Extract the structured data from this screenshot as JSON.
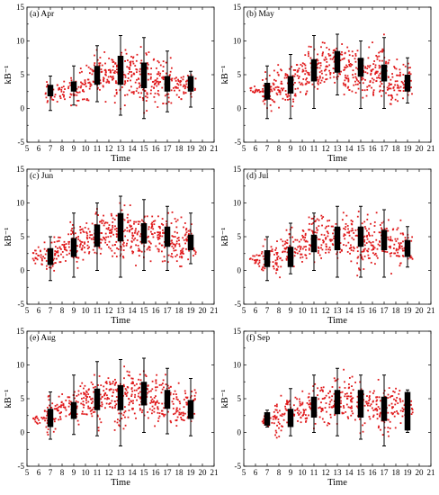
{
  "chart_data": [
    {
      "type": "box",
      "title": "(a) Apr",
      "xlabel": "Time",
      "ylabel": "kB⁻¹",
      "xlim": [
        5,
        21
      ],
      "ylim": [
        -5,
        15
      ],
      "xticks": [
        5,
        6,
        7,
        8,
        9,
        10,
        11,
        12,
        13,
        14,
        15,
        16,
        17,
        18,
        19,
        20,
        21
      ],
      "yticks": [
        -5,
        0,
        5,
        10,
        15
      ],
      "scatter_hours": [
        7,
        8,
        9,
        10,
        11,
        12,
        13,
        14,
        15,
        16,
        17,
        18,
        19
      ],
      "scatter_range": {
        "7": [
          -0.5,
          4.8
        ],
        "8": [
          0.5,
          4.5
        ],
        "9": [
          -0.5,
          5.5
        ],
        "10": [
          0,
          7.5
        ],
        "11": [
          1,
          9.5
        ],
        "12": [
          0,
          10
        ],
        "13": [
          -1,
          10.8
        ],
        "14": [
          0,
          10.5
        ],
        "15": [
          -1.5,
          10.5
        ],
        "16": [
          -1,
          9
        ],
        "17": [
          -0.5,
          8.5
        ],
        "18": [
          0.5,
          6.5
        ],
        "19": [
          0.5,
          5.5
        ]
      },
      "boxes": [
        {
          "hour": 7,
          "whisker_low": -0.3,
          "q1": 1.8,
          "q3": 3.5,
          "whisker_high": 4.8
        },
        {
          "hour": 9,
          "whisker_low": 0.5,
          "q1": 2.5,
          "q3": 4.0,
          "whisker_high": 6.3
        },
        {
          "hour": 11,
          "whisker_low": 1.0,
          "q1": 3.5,
          "q3": 6.3,
          "whisker_high": 9.3
        },
        {
          "hour": 13,
          "whisker_low": -1.0,
          "q1": 3.5,
          "q3": 7.8,
          "whisker_high": 10.8
        },
        {
          "hour": 15,
          "whisker_low": -1.5,
          "q1": 3.0,
          "q3": 6.8,
          "whisker_high": 10.5
        },
        {
          "hour": 17,
          "whisker_low": -0.5,
          "q1": 2.5,
          "q3": 4.8,
          "whisker_high": 8.5
        },
        {
          "hour": 19,
          "whisker_low": 0.2,
          "q1": 2.5,
          "q3": 4.8,
          "whisker_high": 5.5
        }
      ]
    },
    {
      "type": "box",
      "title": "(b) May",
      "xlabel": "Time",
      "ylabel": "kB⁻¹",
      "xlim": [
        5,
        21
      ],
      "ylim": [
        -5,
        15
      ],
      "xticks": [
        5,
        6,
        7,
        8,
        9,
        10,
        11,
        12,
        13,
        14,
        15,
        16,
        17,
        18,
        19,
        20,
        21
      ],
      "yticks": [
        -5,
        0,
        5,
        10,
        15
      ],
      "scatter_hours": [
        6,
        7,
        8,
        9,
        10,
        11,
        12,
        13,
        14,
        15,
        16,
        17,
        18,
        19
      ],
      "scatter_range": {
        "6": [
          2,
          3.5
        ],
        "7": [
          -1.5,
          6.5
        ],
        "8": [
          -1,
          7
        ],
        "9": [
          -1.5,
          8
        ],
        "10": [
          0,
          9
        ],
        "11": [
          0,
          10.5
        ],
        "12": [
          1,
          11.5
        ],
        "13": [
          2,
          11
        ],
        "14": [
          0,
          11
        ],
        "15": [
          0,
          10
        ],
        "16": [
          -0.5,
          10.5
        ],
        "17": [
          -1.5,
          12
        ],
        "18": [
          -1,
          8.5
        ],
        "19": [
          0.5,
          7.5
        ]
      },
      "boxes": [
        {
          "hour": 7,
          "whisker_low": -1.5,
          "q1": 1.3,
          "q3": 3.8,
          "whisker_high": 6.3
        },
        {
          "hour": 9,
          "whisker_low": -1.5,
          "q1": 2.2,
          "q3": 4.8,
          "whisker_high": 8.0
        },
        {
          "hour": 11,
          "whisker_low": 0,
          "q1": 4.0,
          "q3": 7.3,
          "whisker_high": 10.8
        },
        {
          "hour": 13,
          "whisker_low": 2.0,
          "q1": 5.3,
          "q3": 8.5,
          "whisker_high": 11.0
        },
        {
          "hour": 15,
          "whisker_low": 0,
          "q1": 4.7,
          "q3": 7.5,
          "whisker_high": 10.0
        },
        {
          "hour": 17,
          "whisker_low": 0,
          "q1": 4.0,
          "q3": 6.5,
          "whisker_high": 10.5
        },
        {
          "hour": 19,
          "whisker_low": 0.8,
          "q1": 2.5,
          "q3": 5.0,
          "whisker_high": 7.5
        }
      ]
    },
    {
      "type": "box",
      "title": "(c) Jun",
      "xlabel": "Time",
      "ylabel": "kB⁻¹",
      "xlim": [
        5,
        21
      ],
      "ylim": [
        -5,
        15
      ],
      "xticks": [
        5,
        6,
        7,
        8,
        9,
        10,
        11,
        12,
        13,
        14,
        15,
        16,
        17,
        18,
        19,
        20,
        21
      ],
      "yticks": [
        -5,
        0,
        5,
        10,
        15
      ],
      "scatter_hours": [
        6,
        7,
        8,
        9,
        10,
        11,
        12,
        13,
        14,
        15,
        16,
        17,
        18,
        19
      ],
      "scatter_range": {
        "6": [
          0,
          4.5
        ],
        "7": [
          -1.5,
          6.5
        ],
        "8": [
          -0.5,
          7
        ],
        "9": [
          -1,
          8.5
        ],
        "10": [
          0,
          9
        ],
        "11": [
          0,
          10.5
        ],
        "12": [
          1,
          11
        ],
        "13": [
          -1,
          11.2
        ],
        "14": [
          0,
          11
        ],
        "15": [
          0,
          10.5
        ],
        "16": [
          0,
          10.5
        ],
        "17": [
          0,
          9.5
        ],
        "18": [
          -1.5,
          9
        ],
        "19": [
          0.5,
          8.5
        ]
      },
      "boxes": [
        {
          "hour": 7,
          "whisker_low": -1.5,
          "q1": 0.8,
          "q3": 3.3,
          "whisker_high": 5.0
        },
        {
          "hour": 9,
          "whisker_low": -1.0,
          "q1": 2.0,
          "q3": 4.8,
          "whisker_high": 8.5
        },
        {
          "hour": 11,
          "whisker_low": 0,
          "q1": 3.5,
          "q3": 6.8,
          "whisker_high": 10.0
        },
        {
          "hour": 13,
          "whisker_low": -1.0,
          "q1": 4.3,
          "q3": 8.5,
          "whisker_high": 11.0
        },
        {
          "hour": 15,
          "whisker_low": 0,
          "q1": 4.0,
          "q3": 7.0,
          "whisker_high": 10.5
        },
        {
          "hour": 17,
          "whisker_low": 0,
          "q1": 3.5,
          "q3": 6.5,
          "whisker_high": 9.5
        },
        {
          "hour": 19,
          "whisker_low": 1.0,
          "q1": 3.0,
          "q3": 5.3,
          "whisker_high": 8.5
        }
      ]
    },
    {
      "type": "box",
      "title": "(d) Jul",
      "xlabel": "Time",
      "ylabel": "kB⁻¹",
      "xlim": [
        5,
        21
      ],
      "ylim": [
        -5,
        15
      ],
      "xticks": [
        5,
        6,
        7,
        8,
        9,
        10,
        11,
        12,
        13,
        14,
        15,
        16,
        17,
        18,
        19,
        20,
        21
      ],
      "yticks": [
        -5,
        0,
        5,
        10,
        15
      ],
      "scatter_hours": [
        6,
        7,
        8,
        9,
        10,
        11,
        12,
        13,
        14,
        15,
        16,
        17,
        18,
        19
      ],
      "scatter_range": {
        "6": [
          0,
          3
        ],
        "7": [
          -1.5,
          5.5
        ],
        "8": [
          -1.5,
          6
        ],
        "9": [
          -0.5,
          7.5
        ],
        "10": [
          0,
          8
        ],
        "11": [
          0,
          10.5
        ],
        "12": [
          0.5,
          9.5
        ],
        "13": [
          -1,
          9.5
        ],
        "14": [
          0,
          9.5
        ],
        "15": [
          -2,
          9.5
        ],
        "16": [
          -1,
          9.5
        ],
        "17": [
          0,
          9.5
        ],
        "18": [
          -1.5,
          8.5
        ],
        "19": [
          0.5,
          6.5
        ]
      },
      "boxes": [
        {
          "hour": 7,
          "whisker_low": -1.5,
          "q1": 0.5,
          "q3": 3.0,
          "whisker_high": 5.0
        },
        {
          "hour": 9,
          "whisker_low": -0.5,
          "q1": 0.5,
          "q3": 3.5,
          "whisker_high": 7.0
        },
        {
          "hour": 11,
          "whisker_low": 0,
          "q1": 2.7,
          "q3": 5.3,
          "whisker_high": 8.5
        },
        {
          "hour": 13,
          "whisker_low": -1.0,
          "q1": 3.0,
          "q3": 6.5,
          "whisker_high": 9.5
        },
        {
          "hour": 15,
          "whisker_low": -1.0,
          "q1": 3.5,
          "q3": 6.5,
          "whisker_high": 9.5
        },
        {
          "hour": 17,
          "whisker_low": -1.0,
          "q1": 3.0,
          "q3": 6.0,
          "whisker_high": 9.0
        },
        {
          "hour": 19,
          "whisker_low": 0.5,
          "q1": 2.0,
          "q3": 4.5,
          "whisker_high": 6.5
        }
      ]
    },
    {
      "type": "box",
      "title": "(e) Aug",
      "xlabel": "Time",
      "ylabel": "kB⁻¹",
      "xlim": [
        5,
        21
      ],
      "ylim": [
        -5,
        15
      ],
      "xticks": [
        5,
        6,
        7,
        8,
        9,
        10,
        11,
        12,
        13,
        14,
        15,
        16,
        17,
        18,
        19,
        20,
        21
      ],
      "yticks": [
        -5,
        0,
        5,
        10,
        15
      ],
      "scatter_hours": [
        6,
        7,
        8,
        9,
        10,
        11,
        12,
        13,
        14,
        15,
        16,
        17,
        18,
        19
      ],
      "scatter_range": {
        "6": [
          1,
          3
        ],
        "7": [
          -1.5,
          6.5
        ],
        "8": [
          0,
          7
        ],
        "9": [
          0,
          8
        ],
        "10": [
          0,
          9.5
        ],
        "11": [
          -0.5,
          10.5
        ],
        "12": [
          1,
          10
        ],
        "13": [
          -2,
          11
        ],
        "14": [
          0,
          11
        ],
        "15": [
          0,
          11.2
        ],
        "16": [
          0,
          10
        ],
        "17": [
          0,
          9.5
        ],
        "18": [
          -1,
          8
        ],
        "19": [
          0,
          8
        ]
      },
      "boxes": [
        {
          "hour": 7,
          "whisker_low": -1.0,
          "q1": 0.8,
          "q3": 3.5,
          "whisker_high": 6.0
        },
        {
          "hour": 9,
          "whisker_low": -0.3,
          "q1": 2.0,
          "q3": 4.5,
          "whisker_high": 8.5
        },
        {
          "hour": 11,
          "whisker_low": -0.5,
          "q1": 3.3,
          "q3": 6.5,
          "whisker_high": 10.5
        },
        {
          "hour": 13,
          "whisker_low": -2.0,
          "q1": 3.3,
          "q3": 7.0,
          "whisker_high": 10.8
        },
        {
          "hour": 15,
          "whisker_low": 0,
          "q1": 4.0,
          "q3": 7.5,
          "whisker_high": 11.0
        },
        {
          "hour": 17,
          "whisker_low": -0.2,
          "q1": 3.5,
          "q3": 6.3,
          "whisker_high": 9.5
        },
        {
          "hour": 19,
          "whisker_low": -0.5,
          "q1": 2.0,
          "q3": 4.8,
          "whisker_high": 8.0
        }
      ]
    },
    {
      "type": "box",
      "title": "(f) Sep",
      "xlabel": "Time",
      "ylabel": "kB⁻¹",
      "xlim": [
        5,
        21
      ],
      "ylim": [
        -5,
        15
      ],
      "xticks": [
        5,
        6,
        7,
        8,
        9,
        10,
        11,
        12,
        13,
        14,
        15,
        16,
        17,
        18,
        19,
        20,
        21
      ],
      "yticks": [
        -5,
        0,
        5,
        10,
        15
      ],
      "scatter_hours": [
        7,
        8,
        9,
        10,
        11,
        12,
        13,
        14,
        15,
        16,
        17,
        18,
        19
      ],
      "scatter_range": {
        "7": [
          0.5,
          3.5
        ],
        "8": [
          -2.5,
          6
        ],
        "9": [
          0,
          6.5
        ],
        "10": [
          -0.5,
          7
        ],
        "11": [
          0,
          8.5
        ],
        "12": [
          0,
          8.5
        ],
        "13": [
          0,
          10
        ],
        "14": [
          0,
          10
        ],
        "15": [
          -1,
          8.5
        ],
        "16": [
          0,
          8.5
        ],
        "17": [
          -2,
          8.5
        ],
        "18": [
          0,
          7.5
        ],
        "19": [
          1,
          6.5
        ]
      },
      "boxes": [
        {
          "hour": 7,
          "whisker_low": 0.8,
          "q1": 1.0,
          "q3": 3.0,
          "whisker_high": 3.3
        },
        {
          "hour": 9,
          "whisker_low": -0.5,
          "q1": 0.8,
          "q3": 3.5,
          "whisker_high": 6.5
        },
        {
          "hour": 11,
          "whisker_low": 0,
          "q1": 2.2,
          "q3": 5.3,
          "whisker_high": 8.5
        },
        {
          "hour": 13,
          "whisker_low": -0.5,
          "q1": 2.7,
          "q3": 6.3,
          "whisker_high": 9.5
        },
        {
          "hour": 15,
          "whisker_low": -1.0,
          "q1": 2.2,
          "q3": 6.3,
          "whisker_high": 8.5
        },
        {
          "hour": 17,
          "whisker_low": -2.0,
          "q1": 1.7,
          "q3": 5.3,
          "whisker_high": 8.5
        },
        {
          "hour": 19,
          "whisker_low": 0,
          "q1": 0.3,
          "q3": 6.0,
          "whisker_high": 6.3
        }
      ]
    }
  ]
}
